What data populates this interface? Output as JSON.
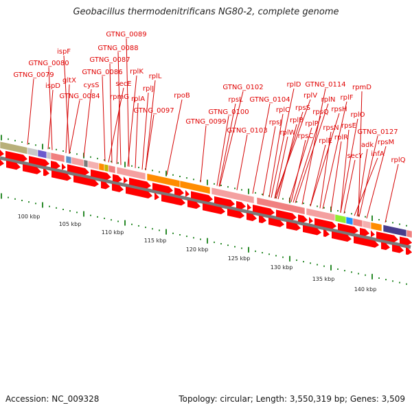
{
  "title": "Geobacillus thermodenitrificans NG80-2, complete genome",
  "footer": {
    "accession": "Accession: NC_009328",
    "stats": "Topology: circular; Length: 3,550,319 bp; Genes: 3,509"
  },
  "axis": {
    "unit": "kbp",
    "ticks": [
      "100 kbp",
      "105 kbp",
      "110 kbp",
      "115 kbp",
      "120 kbp",
      "125 kbp",
      "130 kbp",
      "135 kbp",
      "140 kbp"
    ]
  },
  "gene_labels": [
    "GTNG_0089",
    "GTNG_0088",
    "ispF",
    "GTNG_0087",
    "GTNG_0080",
    "GTNG_0086",
    "rplK",
    "GTNG_0079",
    "ispD",
    "gltX",
    "cysS",
    "secE",
    "rplL",
    "GTNG_0084",
    "rplA",
    "rplJ",
    "rpmG",
    "rpoB",
    "GTNG_0097",
    "GTNG_0102",
    "rpsL",
    "GTNG_0100",
    "GTNG_0099",
    "GTNG_0103",
    "GTNG_0104",
    "rplD",
    "GTNG_0114",
    "rpmD",
    "rplV",
    "rplN",
    "rplF",
    "rpsS",
    "rplC",
    "rpsQ",
    "rpsH",
    "rplO",
    "rpsJ",
    "rplP",
    "rplB",
    "rpsN",
    "rpsE",
    "GTNG_0127",
    "rplW",
    "rpsC",
    "rplE",
    "rplR",
    "adk",
    "rpsM",
    "secY",
    "infA",
    "rplQ"
  ],
  "colors": {
    "label": "#e00000",
    "tick": "#2a8a2a",
    "backbone": "#888888",
    "gene_arrow": "#ff0000"
  }
}
